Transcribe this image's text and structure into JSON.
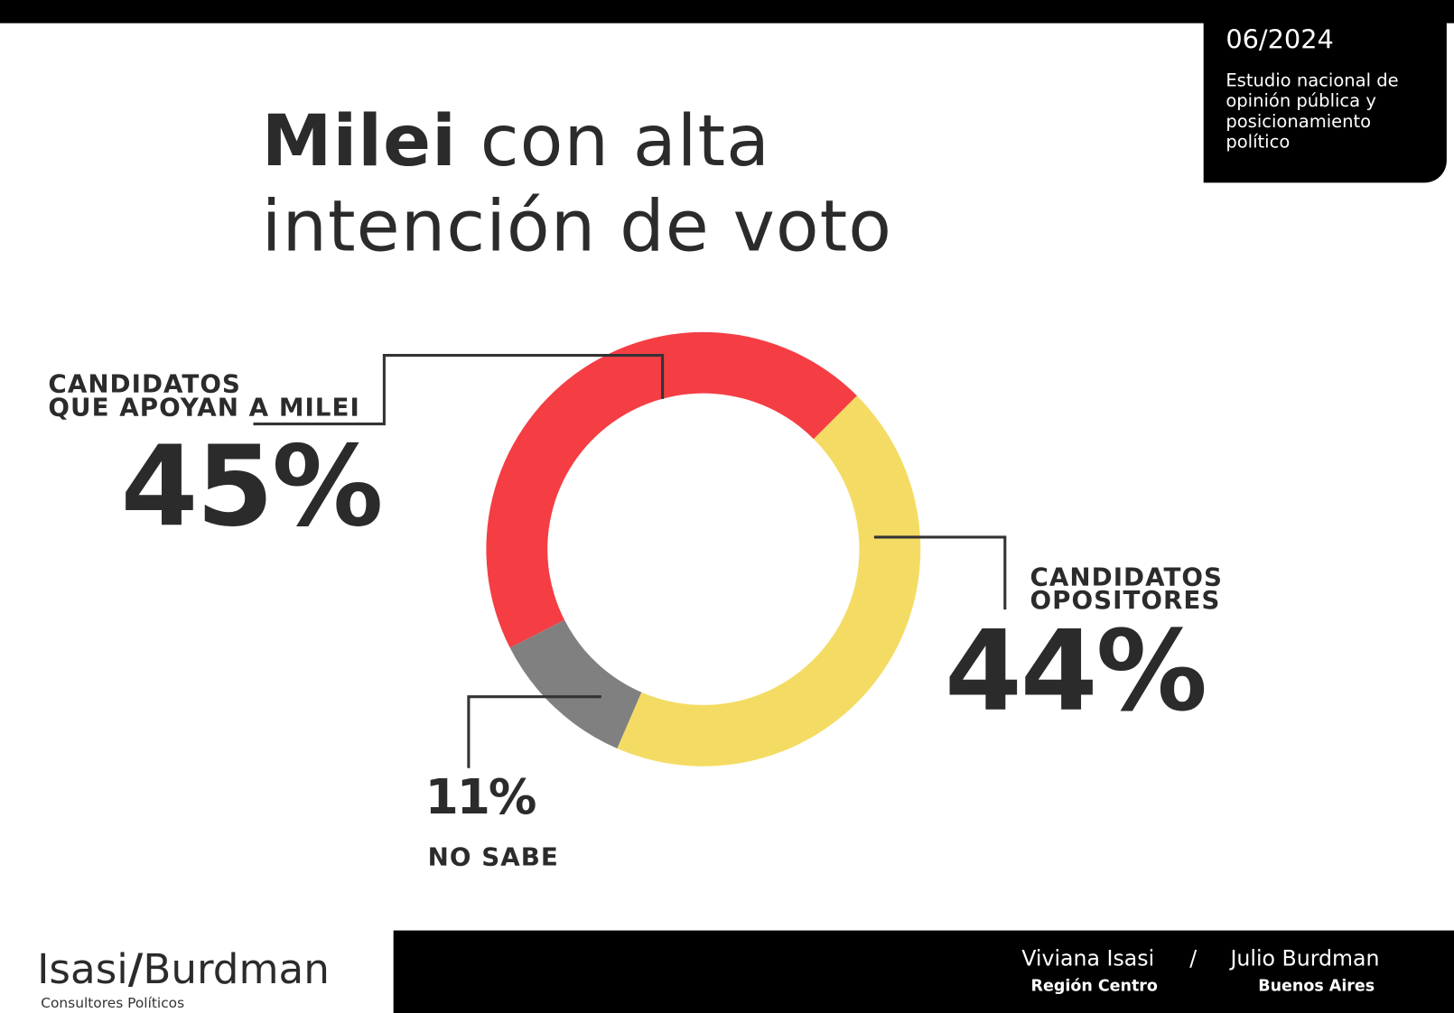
{
  "badge": {
    "date": "06/2024",
    "description": "Estudio nacional de opinión pública y posicionamiento político"
  },
  "title": {
    "bold": "Milei",
    "rest_line1": " con alta",
    "line2": "intención de voto"
  },
  "chart_data": {
    "type": "pie",
    "donut": true,
    "segments": [
      {
        "label": "CANDIDATOS QUE APOYAN A MILEI",
        "value": 45,
        "value_label": "45%",
        "color": "#f43e44"
      },
      {
        "label": "CANDIDATOS OPOSITORES",
        "value": 44,
        "value_label": "44%",
        "color": "#f4dc64"
      },
      {
        "label": "NO SABE",
        "value": 11,
        "value_label": "11%",
        "color": "#808080"
      }
    ]
  },
  "labels": {
    "milei_line1": "CANDIDATOS",
    "milei_line2": "QUE APOYAN A MILEI",
    "opos_line1": "CANDIDATOS",
    "opos_line2": "OPOSITORES",
    "nosabe": "NO SABE"
  },
  "footer": {
    "logo_left": "Isasi",
    "logo_slash": "/",
    "logo_right": "Burdman",
    "logo_sub": "Consultores Políticos",
    "person1": "Viviana Isasi",
    "region1": "Región Centro",
    "separator": "/",
    "person2": "Julio Burdman",
    "region2": "Buenos Aires"
  }
}
